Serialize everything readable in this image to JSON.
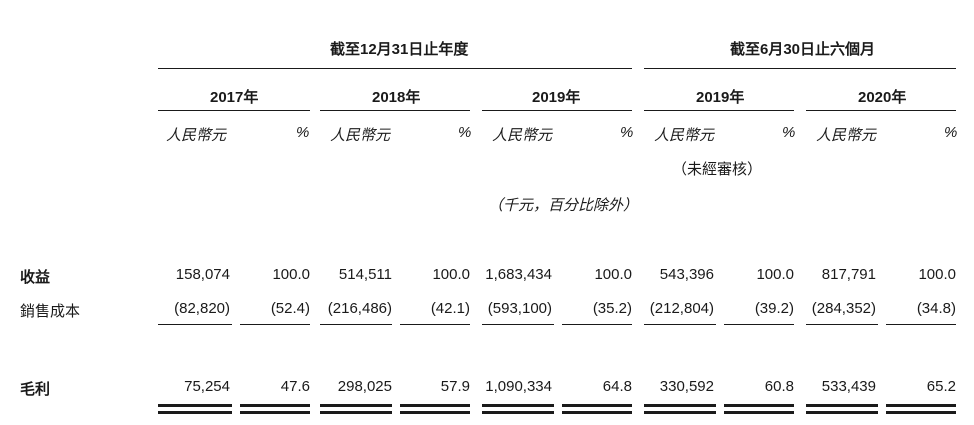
{
  "period_headers": {
    "annual": "截至12月31日止年度",
    "interim": "截至6月30日止六個月"
  },
  "years": [
    "2017年",
    "2018年",
    "2019年",
    "2019年",
    "2020年"
  ],
  "units": {
    "rmb": "人民幣元",
    "pct": "%"
  },
  "unaudited_note": "（未經審核）",
  "thousands_note": "（千元，百分比除外）",
  "rows": [
    {
      "label": "收益",
      "values": [
        "158,074",
        "100.0",
        "514,511",
        "100.0",
        "1,683,434",
        "100.0",
        "543,396",
        "100.0",
        "817,791",
        "100.0"
      ]
    },
    {
      "label": "銷售成本",
      "values": [
        "(82,820)",
        "(52.4)",
        "(216,486)",
        "(42.1)",
        "(593,100)",
        "(35.2)",
        "(212,804)",
        "(39.2)",
        "(284,352)",
        "(34.8)"
      ]
    },
    {
      "label": "毛利",
      "values": [
        "75,254",
        "47.6",
        "298,025",
        "57.9",
        "1,090,334",
        "64.8",
        "330,592",
        "60.8",
        "533,439",
        "65.2"
      ]
    }
  ]
}
